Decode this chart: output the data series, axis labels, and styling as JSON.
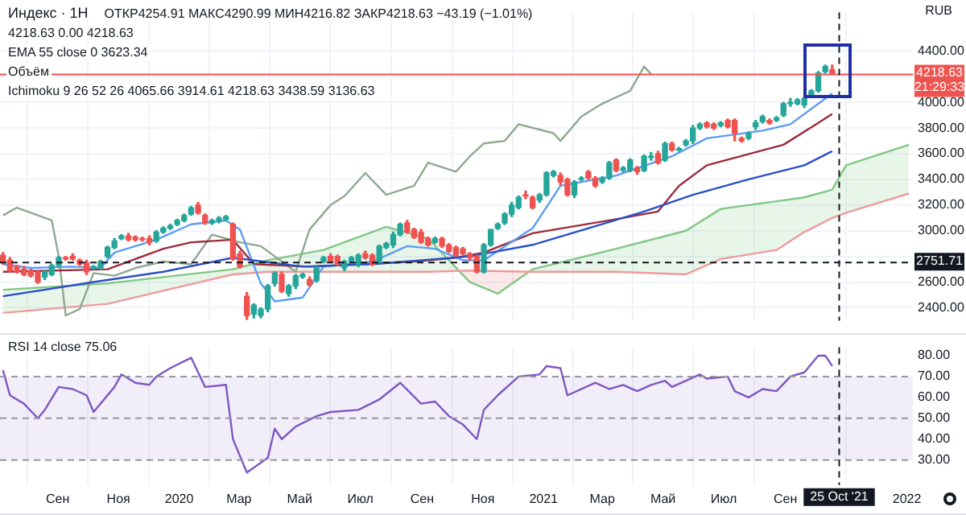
{
  "chart_data": [
    {
      "type": "candlestick",
      "title": "Индекс · 1H",
      "ylabel": "RUB",
      "annotations": [
        "ОТКР4254.91 МАКС4290.99 МИН4216.82 ЗАКР4218.63 −43.19 (−1.01%)",
        "4218.63 0.00 4218.63",
        "EMA 55 close 0 3623.34",
        "Объём",
        "Ichimoku 9 26 52 26 4065.66 3914.61 4218.63 3438.59 3136.63"
      ],
      "x": [
        "2019-07-08",
        "2019-07-15",
        "2019-07-22",
        "2019-07-29",
        "2019-08-05",
        "2019-08-12",
        "2019-08-19",
        "2019-08-26",
        "2019-09-02",
        "2019-09-09",
        "2019-09-16",
        "2019-09-23",
        "2019-09-30",
        "2019-10-07",
        "2019-10-14",
        "2019-10-21",
        "2019-10-28",
        "2019-11-04",
        "2019-11-11",
        "2019-11-18",
        "2019-11-25",
        "2019-12-02",
        "2019-12-09",
        "2019-12-16",
        "2019-12-23",
        "2019-12-30",
        "2020-01-06",
        "2020-01-13",
        "2020-01-20",
        "2020-01-27",
        "2020-02-03",
        "2020-02-10",
        "2020-02-17",
        "2020-02-24",
        "2020-03-02",
        "2020-03-09",
        "2020-03-16",
        "2020-03-23",
        "2020-03-30",
        "2020-04-06",
        "2020-04-13",
        "2020-04-20",
        "2020-04-27",
        "2020-05-04",
        "2020-05-11",
        "2020-05-18",
        "2020-05-25",
        "2020-06-01",
        "2020-06-08",
        "2020-06-15",
        "2020-06-22",
        "2020-06-29",
        "2020-07-06",
        "2020-07-13",
        "2020-07-20",
        "2020-07-27",
        "2020-08-03",
        "2020-08-10",
        "2020-08-17",
        "2020-08-24",
        "2020-08-31",
        "2020-09-07",
        "2020-09-14",
        "2020-09-21",
        "2020-09-28",
        "2020-10-05",
        "2020-10-12",
        "2020-10-19",
        "2020-10-26",
        "2020-11-02",
        "2020-11-09",
        "2020-11-16",
        "2020-11-23",
        "2020-11-30",
        "2020-12-07",
        "2020-12-14",
        "2020-12-21",
        "2020-12-28",
        "2021-01-04",
        "2021-01-11",
        "2021-01-18",
        "2021-01-25",
        "2021-02-01",
        "2021-02-08",
        "2021-02-15",
        "2021-02-22",
        "2021-03-01",
        "2021-03-08",
        "2021-03-15",
        "2021-03-22",
        "2021-03-29",
        "2021-04-05",
        "2021-04-12",
        "2021-04-19",
        "2021-04-26",
        "2021-05-03",
        "2021-05-10",
        "2021-05-17",
        "2021-05-24",
        "2021-05-31",
        "2021-06-07",
        "2021-06-14",
        "2021-06-21",
        "2021-06-28",
        "2021-07-05",
        "2021-07-12",
        "2021-07-19",
        "2021-07-26",
        "2021-08-02",
        "2021-08-09",
        "2021-08-16",
        "2021-08-23",
        "2021-08-30",
        "2021-09-06",
        "2021-09-13",
        "2021-09-20",
        "2021-09-27",
        "2021-10-04",
        "2021-10-11",
        "2021-10-18"
      ],
      "ohlc": [
        [
          2810,
          2830,
          2740,
          2750
        ],
        [
          2770,
          2790,
          2680,
          2690
        ],
        [
          2720,
          2730,
          2670,
          2680
        ],
        [
          2700,
          2720,
          2650,
          2660
        ],
        [
          2690,
          2700,
          2640,
          2650
        ],
        [
          2680,
          2690,
          2590,
          2600
        ],
        [
          2640,
          2690,
          2620,
          2680
        ],
        [
          2660,
          2740,
          2650,
          2730
        ],
        [
          2730,
          2800,
          2720,
          2790
        ],
        [
          2790,
          2800,
          2770,
          2780
        ],
        [
          2800,
          2820,
          2770,
          2780
        ],
        [
          2770,
          2780,
          2730,
          2740
        ],
        [
          2750,
          2770,
          2660,
          2680
        ],
        [
          2710,
          2730,
          2700,
          2720
        ],
        [
          2710,
          2770,
          2700,
          2760
        ],
        [
          2800,
          2880,
          2790,
          2870
        ],
        [
          2870,
          2940,
          2860,
          2920
        ],
        [
          2940,
          2970,
          2930,
          2960
        ],
        [
          2960,
          2980,
          2920,
          2930
        ],
        [
          2950,
          2960,
          2920,
          2930
        ],
        [
          2940,
          2950,
          2920,
          2930
        ],
        [
          2940,
          2960,
          2890,
          2910
        ],
        [
          2920,
          3000,
          2910,
          2990
        ],
        [
          2990,
          3030,
          2980,
          3020
        ],
        [
          3020,
          3050,
          3010,
          3040
        ],
        [
          3050,
          3090,
          3040,
          3080
        ],
        [
          3080,
          3130,
          3070,
          3120
        ],
        [
          3130,
          3190,
          3120,
          3180
        ],
        [
          3200,
          3220,
          3130,
          3140
        ],
        [
          3120,
          3130,
          3050,
          3060
        ],
        [
          3060,
          3090,
          3050,
          3080
        ],
        [
          3080,
          3110,
          3060,
          3100
        ],
        [
          3090,
          3120,
          3080,
          3110
        ],
        [
          3050,
          3060,
          2770,
          2780
        ],
        [
          2820,
          2840,
          2710,
          2720
        ],
        [
          2490,
          2520,
          2310,
          2340
        ],
        [
          2350,
          2430,
          2320,
          2420
        ],
        [
          2340,
          2400,
          2320,
          2390
        ],
        [
          2390,
          2580,
          2370,
          2570
        ],
        [
          2590,
          2680,
          2570,
          2670
        ],
        [
          2660,
          2680,
          2520,
          2530
        ],
        [
          2510,
          2580,
          2490,
          2570
        ],
        [
          2570,
          2660,
          2550,
          2650
        ],
        [
          2640,
          2670,
          2630,
          2660
        ],
        [
          2620,
          2640,
          2570,
          2580
        ],
        [
          2610,
          2720,
          2600,
          2710
        ],
        [
          2760,
          2800,
          2750,
          2790
        ],
        [
          2800,
          2820,
          2750,
          2760
        ],
        [
          2800,
          2810,
          2730,
          2740
        ],
        [
          2710,
          2770,
          2690,
          2760
        ],
        [
          2760,
          2800,
          2750,
          2790
        ],
        [
          2740,
          2820,
          2720,
          2810
        ],
        [
          2820,
          2840,
          2780,
          2790
        ],
        [
          2810,
          2820,
          2730,
          2740
        ],
        [
          2760,
          2890,
          2750,
          2880
        ],
        [
          2870,
          2910,
          2860,
          2900
        ],
        [
          2890,
          2990,
          2870,
          2970
        ],
        [
          2970,
          3060,
          2960,
          3050
        ],
        [
          3060,
          3080,
          2980,
          2990
        ],
        [
          3010,
          3020,
          2940,
          2950
        ],
        [
          2990,
          3010,
          2900,
          2910
        ],
        [
          2940,
          2950,
          2880,
          2890
        ],
        [
          2910,
          2950,
          2900,
          2940
        ],
        [
          2940,
          2950,
          2870,
          2880
        ],
        [
          2890,
          2900,
          2830,
          2840
        ],
        [
          2870,
          2880,
          2800,
          2810
        ],
        [
          2860,
          2870,
          2810,
          2820
        ],
        [
          2820,
          2830,
          2770,
          2790
        ],
        [
          2800,
          2810,
          2670,
          2680
        ],
        [
          2680,
          2900,
          2670,
          2890
        ],
        [
          2890,
          3010,
          2880,
          3010
        ],
        [
          3020,
          3060,
          3010,
          3050
        ],
        [
          3060,
          3140,
          3050,
          3130
        ],
        [
          3130,
          3220,
          3110,
          3200
        ],
        [
          3180,
          3270,
          3170,
          3260
        ],
        [
          3280,
          3310,
          3250,
          3270
        ],
        [
          3260,
          3270,
          3170,
          3180
        ],
        [
          3240,
          3290,
          3220,
          3280
        ],
        [
          3280,
          3460,
          3270,
          3450
        ],
        [
          3430,
          3470,
          3420,
          3460
        ],
        [
          3430,
          3450,
          3360,
          3380
        ],
        [
          3400,
          3410,
          3270,
          3280
        ],
        [
          3280,
          3390,
          3260,
          3380
        ],
        [
          3400,
          3420,
          3390,
          3410
        ],
        [
          3460,
          3470,
          3400,
          3410
        ],
        [
          3410,
          3420,
          3340,
          3350
        ],
        [
          3380,
          3420,
          3370,
          3410
        ],
        [
          3410,
          3540,
          3400,
          3530
        ],
        [
          3550,
          3560,
          3460,
          3470
        ],
        [
          3470,
          3500,
          3460,
          3490
        ],
        [
          3470,
          3560,
          3460,
          3550
        ],
        [
          3490,
          3500,
          3440,
          3460
        ],
        [
          3470,
          3590,
          3460,
          3580
        ],
        [
          3570,
          3610,
          3550,
          3580
        ],
        [
          3600,
          3620,
          3520,
          3530
        ],
        [
          3550,
          3690,
          3540,
          3680
        ],
        [
          3680,
          3690,
          3620,
          3630
        ],
        [
          3630,
          3650,
          3620,
          3640
        ],
        [
          3670,
          3710,
          3660,
          3700
        ],
        [
          3700,
          3820,
          3680,
          3800
        ],
        [
          3800,
          3840,
          3790,
          3830
        ],
        [
          3840,
          3850,
          3800,
          3810
        ],
        [
          3830,
          3840,
          3790,
          3800
        ],
        [
          3820,
          3850,
          3810,
          3840
        ],
        [
          3860,
          3870,
          3800,
          3810
        ],
        [
          3860,
          3870,
          3700,
          3760
        ],
        [
          3720,
          3730,
          3690,
          3700
        ],
        [
          3720,
          3770,
          3710,
          3760
        ],
        [
          3810,
          3860,
          3790,
          3840
        ],
        [
          3850,
          3900,
          3840,
          3890
        ],
        [
          3860,
          3870,
          3830,
          3840
        ],
        [
          3860,
          3890,
          3850,
          3880
        ],
        [
          3900,
          4000,
          3890,
          3990
        ],
        [
          3990,
          4030,
          3970,
          4000
        ],
        [
          3990,
          4030,
          3980,
          4020
        ],
        [
          3980,
          4040,
          3960,
          4030
        ],
        [
          4050,
          4100,
          4040,
          4090
        ],
        [
          4090,
          4240,
          4080,
          4230
        ],
        [
          4240,
          4290,
          4230,
          4280
        ],
        [
          4254.91,
          4290.99,
          4216.82,
          4218.63
        ]
      ],
      "colors": [
        "#ef5350",
        "#ef5350",
        "#ef5350",
        "#ef5350",
        "#ef5350",
        "#ef5350",
        "#26a69a",
        "#26a69a",
        "#26a69a",
        "#ef5350",
        "#ef5350",
        "#ef5350",
        "#ef5350",
        "#26a69a",
        "#26a69a",
        "#26a69a",
        "#26a69a",
        "#26a69a",
        "#ef5350",
        "#ef5350",
        "#ef5350",
        "#ef5350",
        "#26a69a",
        "#26a69a",
        "#26a69a",
        "#26a69a",
        "#26a69a",
        "#26a69a",
        "#ef5350",
        "#ef5350",
        "#26a69a",
        "#26a69a",
        "#26a69a",
        "#ef5350",
        "#ef5350",
        "#ef5350",
        "#26a69a",
        "#26a69a",
        "#26a69a",
        "#26a69a",
        "#ef5350",
        "#26a69a",
        "#26a69a",
        "#26a69a",
        "#ef5350",
        "#26a69a",
        "#26a69a",
        "#ef5350",
        "#ef5350",
        "#26a69a",
        "#26a69a",
        "#26a69a",
        "#ef5350",
        "#ef5350",
        "#26a69a",
        "#26a69a",
        "#26a69a",
        "#26a69a",
        "#ef5350",
        "#ef5350",
        "#ef5350",
        "#ef5350",
        "#26a69a",
        "#ef5350",
        "#ef5350",
        "#ef5350",
        "#ef5350",
        "#ef5350",
        "#ef5350",
        "#26a69a",
        "#26a69a",
        "#26a69a",
        "#26a69a",
        "#26a69a",
        "#26a69a",
        "#ef5350",
        "#ef5350",
        "#26a69a",
        "#26a69a",
        "#26a69a",
        "#ef5350",
        "#ef5350",
        "#26a69a",
        "#26a69a",
        "#ef5350",
        "#ef5350",
        "#26a69a",
        "#26a69a",
        "#ef5350",
        "#26a69a",
        "#26a69a",
        "#ef5350",
        "#26a69a",
        "#26a69a",
        "#ef5350",
        "#26a69a",
        "#ef5350",
        "#26a69a",
        "#26a69a",
        "#26a69a",
        "#26a69a",
        "#ef5350",
        "#ef5350",
        "#26a69a",
        "#ef5350",
        "#ef5350",
        "#ef5350",
        "#26a69a",
        "#26a69a",
        "#26a69a",
        "#ef5350",
        "#26a69a",
        "#26a69a",
        "#26a69a",
        "#26a69a",
        "#26a69a",
        "#26a69a",
        "#26a69a",
        "#26a69a",
        "#ef5350"
      ],
      "series": [
        {
          "type": "line",
          "color": "#2a4fc7",
          "x": [
            "2019-07-08",
            "2019-10-07",
            "2019-12-16",
            "2020-02-24",
            "2020-05-04",
            "2020-07-13",
            "2020-10-19",
            "2020-12-21",
            "2021-04-12",
            "2021-05-31",
            "2021-07-26",
            "2021-09-20",
            "2021-10-18"
          ],
          "values": [
            2490,
            2600,
            2680,
            2790,
            2720,
            2740,
            2800,
            2890,
            3150,
            3280,
            3400,
            3510,
            3620
          ]
        },
        {
          "type": "line",
          "color": "#5b9cf6",
          "x": [
            "2019-07-08",
            "2019-08-05",
            "2019-09-16",
            "2019-10-14",
            "2019-10-28",
            "2019-12-09",
            "2020-01-13",
            "2020-02-17",
            "2020-03-02",
            "2020-03-23",
            "2020-04-06",
            "2020-05-04",
            "2020-05-25",
            "2020-07-13",
            "2020-08-17",
            "2020-09-14",
            "2020-10-12",
            "2020-11-02",
            "2020-12-21",
            "2021-01-18",
            "2021-03-15",
            "2021-05-10",
            "2021-06-14",
            "2021-08-09",
            "2021-09-06",
            "2021-10-18"
          ],
          "values": [
            2740,
            2710,
            2720,
            2710,
            2830,
            2930,
            3050,
            3080,
            3010,
            2590,
            2450,
            2480,
            2720,
            2760,
            2880,
            2860,
            2770,
            2770,
            3020,
            3350,
            3430,
            3580,
            3720,
            3780,
            3830,
            4070
          ]
        },
        {
          "type": "line",
          "color": "#9c2a3a",
          "x": [
            "2019-07-08",
            "2019-10-21",
            "2019-12-16",
            "2020-01-13",
            "2020-02-24",
            "2020-03-16",
            "2020-05-11",
            "2020-08-24",
            "2020-10-05",
            "2020-11-02",
            "2020-12-21",
            "2021-03-15",
            "2021-04-26",
            "2021-05-17",
            "2021-06-14",
            "2021-08-30",
            "2021-10-04",
            "2021-10-18"
          ],
          "values": [
            2680,
            2700,
            2860,
            2910,
            2930,
            2740,
            2720,
            2760,
            2790,
            2830,
            2980,
            3090,
            3150,
            3350,
            3510,
            3670,
            3840,
            3910
          ]
        },
        {
          "type": "line",
          "color": "#8fa88f",
          "x": [
            "2019-07-08",
            "2019-07-22",
            "2019-08-26",
            "2019-09-02",
            "2019-09-09",
            "2019-09-23",
            "2019-10-07",
            "2019-10-28",
            "2019-11-18",
            "2019-12-16",
            "2020-01-13",
            "2020-02-03",
            "2020-03-02",
            "2020-03-23",
            "2020-04-27",
            "2020-05-11",
            "2020-06-01",
            "2020-06-15",
            "2020-07-06",
            "2020-07-27",
            "2020-08-24",
            "2020-09-07",
            "2020-10-05",
            "2020-10-19",
            "2020-11-02",
            "2020-11-23",
            "2020-12-07",
            "2021-01-11",
            "2021-01-18",
            "2021-02-08",
            "2021-03-01",
            "2021-03-29",
            "2021-04-12",
            "2021-04-19"
          ],
          "values": [
            3120,
            3180,
            3080,
            2800,
            2340,
            2390,
            2670,
            2650,
            2710,
            2760,
            2740,
            2970,
            2910,
            2880,
            2680,
            3010,
            3200,
            3270,
            3450,
            3280,
            3350,
            3530,
            3460,
            3580,
            3680,
            3700,
            3830,
            3760,
            3700,
            3890,
            3990,
            4090,
            4280,
            4220
          ]
        },
        {
          "type": "line",
          "color": "#ef9a9a",
          "x": [
            "2019-07-08",
            "2019-10-21",
            "2020-02-24",
            "2020-03-30",
            "2020-05-25",
            "2020-07-27",
            "2020-09-07",
            "2020-10-19",
            "2020-12-21",
            "2021-03-15",
            "2021-05-24",
            "2021-06-28",
            "2021-08-23",
            "2021-09-20",
            "2021-10-18",
            "2021-11-01",
            "2022-01-03"
          ],
          "values": [
            2360,
            2430,
            2660,
            2680,
            2680,
            2680,
            2680,
            2690,
            2680,
            2680,
            2660,
            2780,
            2850,
            2990,
            3100,
            3140,
            3290
          ]
        },
        {
          "type": "area",
          "color": "#81c784",
          "x": [
            "2019-07-08",
            "2019-10-21",
            "2020-02-24",
            "2020-03-30",
            "2020-05-25",
            "2020-07-27",
            "2020-09-07",
            "2020-10-19",
            "2020-11-16",
            "2020-12-21",
            "2021-03-15",
            "2021-05-24",
            "2021-06-28",
            "2021-08-23",
            "2021-09-20",
            "2021-10-18",
            "2021-11-01",
            "2022-01-03"
          ],
          "values": [
            2540,
            2590,
            2700,
            2770,
            2850,
            3030,
            2940,
            2600,
            2510,
            2700,
            2860,
            3000,
            3170,
            3230,
            3260,
            3320,
            3510,
            3670
          ]
        }
      ],
      "xlim": [
        "2019-07-05",
        "2022-01-07"
      ],
      "xticks": [
        {
          "value": "2019-09-01",
          "label": null
        },
        {
          "value": "2019-11-01",
          "label": null
        },
        {
          "value": "2020-01-01",
          "label": null
        },
        {
          "value": "2020-03-01",
          "label": null
        },
        {
          "value": "2020-05-01",
          "label": null
        },
        {
          "value": "2020-07-01",
          "label": null
        },
        {
          "value": "2020-09-01",
          "label": null
        },
        {
          "value": "2020-11-01",
          "label": null
        },
        {
          "value": "2021-01-01",
          "label": null
        },
        {
          "value": "2021-03-01",
          "label": null
        },
        {
          "value": "2021-05-01",
          "label": null
        },
        {
          "value": "2021-07-01",
          "label": null
        },
        {
          "value": "2021-09-01",
          "label": null
        },
        {
          "value": "2022-01-01",
          "label": null
        }
      ],
      "ylim": [
        2300,
        4700
      ],
      "yticks": [
        {
          "value": 2400,
          "label": "2400.00"
        },
        {
          "value": 2600,
          "label": "2600.00"
        },
        {
          "value": 2800,
          "label": null
        },
        {
          "value": 3000,
          "label": "3000.00"
        },
        {
          "value": 3200,
          "label": "3200.00"
        },
        {
          "value": 3400,
          "label": "3400.00"
        },
        {
          "value": 3600,
          "label": "3600.00"
        },
        {
          "value": 3800,
          "label": "3800.00"
        },
        {
          "value": 4000,
          "label": "4000.00"
        },
        {
          "value": 4200,
          "label": null
        },
        {
          "value": 4400,
          "label": "4400.00"
        }
      ],
      "ref_lines": [
        {
          "axis": "y",
          "value": 4218.63,
          "label": "4218.63\n21:29:33",
          "color": "#ef5350"
        },
        {
          "axis": "y",
          "value": 2751.71,
          "label": "2751.71",
          "color": "#131722",
          "line_style": "dashed"
        },
        {
          "axis": "x",
          "value": "2021-10-25",
          "color": "#131722",
          "line_style": "dashed"
        }
      ],
      "grid": true,
      "legend": false,
      "marker": "none",
      "tick_labels": "y"
    },
    {
      "type": "line",
      "annotations": [
        "RSI 14 close 75.06"
      ],
      "series": [
        {
          "color": "#7e57c2",
          "x": [
            "2019-07-08",
            "2019-07-15",
            "2019-07-29",
            "2019-08-12",
            "2019-08-19",
            "2019-09-02",
            "2019-09-16",
            "2019-09-30",
            "2019-10-07",
            "2019-10-28",
            "2019-11-04",
            "2019-11-18",
            "2019-12-02",
            "2019-12-09",
            "2019-12-23",
            "2020-01-13",
            "2020-01-27",
            "2020-02-17",
            "2020-02-24",
            "2020-03-09",
            "2020-03-30",
            "2020-04-06",
            "2020-04-13",
            "2020-04-27",
            "2020-05-18",
            "2020-06-01",
            "2020-06-29",
            "2020-07-20",
            "2020-08-10",
            "2020-08-31",
            "2020-09-14",
            "2020-09-28",
            "2020-10-12",
            "2020-10-26",
            "2020-11-02",
            "2020-11-16",
            "2020-12-07",
            "2020-12-28",
            "2021-01-04",
            "2021-01-18",
            "2021-01-25",
            "2021-02-22",
            "2021-03-08",
            "2021-03-22",
            "2021-04-05",
            "2021-04-19",
            "2021-05-03",
            "2021-05-10",
            "2021-06-07",
            "2021-06-14",
            "2021-07-05",
            "2021-07-12",
            "2021-07-26",
            "2021-08-09",
            "2021-08-23",
            "2021-09-06",
            "2021-09-20",
            "2021-10-04",
            "2021-10-11",
            "2021-10-18"
          ],
          "values": [
            73,
            61,
            57,
            50,
            54,
            65,
            64,
            61,
            53,
            65,
            71,
            67,
            66,
            70,
            74,
            79,
            65,
            66,
            40,
            24,
            31,
            45,
            40,
            46,
            51,
            53,
            54,
            59,
            67,
            57,
            58,
            51,
            47,
            40,
            54,
            61,
            70,
            71,
            75,
            74,
            61,
            67,
            64,
            66,
            63,
            66,
            68,
            65,
            71,
            69,
            70,
            63,
            60,
            64,
            63,
            70,
            72,
            80,
            80,
            75
          ]
        }
      ],
      "xlim": [
        "2019-07-05",
        "2022-01-07"
      ],
      "xticks": [
        {
          "value": "2019-09-01",
          "label": "Сен"
        },
        {
          "value": "2019-11-01",
          "label": "Ноя"
        },
        {
          "value": "2020-01-01",
          "label": "2020"
        },
        {
          "value": "2020-03-01",
          "label": "Мар"
        },
        {
          "value": "2020-05-01",
          "label": "Май"
        },
        {
          "value": "2020-07-01",
          "label": "Июл"
        },
        {
          "value": "2020-09-01",
          "label": "Сен"
        },
        {
          "value": "2020-11-01",
          "label": "Ноя"
        },
        {
          "value": "2021-01-01",
          "label": "2021"
        },
        {
          "value": "2021-03-01",
          "label": "Мар"
        },
        {
          "value": "2021-05-01",
          "label": "Май"
        },
        {
          "value": "2021-07-01",
          "label": "Июл"
        },
        {
          "value": "2021-09-01",
          "label": "Сен"
        },
        {
          "value": "2022-01-01",
          "label": "2022"
        }
      ],
      "ylim": [
        18,
        84
      ],
      "yticks": [
        {
          "value": 30,
          "label": "30.00"
        },
        {
          "value": 40,
          "label": "40.00"
        },
        {
          "value": 50,
          "label": "50.00"
        },
        {
          "value": 60,
          "label": "60.00"
        },
        {
          "value": 70,
          "label": "70.00"
        },
        {
          "value": 80,
          "label": "80.00"
        }
      ],
      "bands": [
        {
          "axis": "y",
          "from": 30,
          "to": 70,
          "color": "#7e57c2"
        }
      ],
      "ref_lines": [
        {
          "axis": "y",
          "value": 70,
          "color": "#9598a1",
          "line_style": "dashed"
        },
        {
          "axis": "y",
          "value": 50,
          "color": "#9598a1",
          "line_style": "dashed"
        },
        {
          "axis": "y",
          "value": 30,
          "color": "#9598a1",
          "line_style": "dashed"
        },
        {
          "axis": "x",
          "value": "2021-10-25",
          "label": "25 Oct '21",
          "color": "#131722",
          "line_style": "dashed"
        }
      ],
      "grid": "x",
      "legend": false,
      "marker": "none"
    }
  ]
}
